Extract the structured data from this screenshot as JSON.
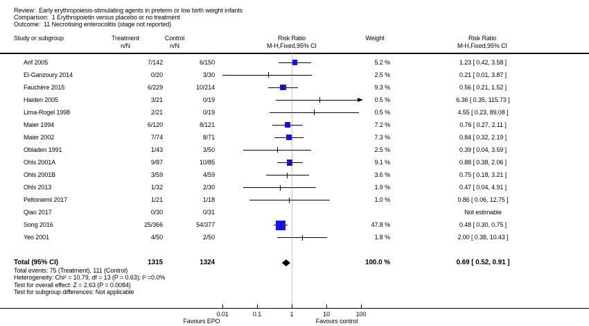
{
  "meta": {
    "review_label": "Review:",
    "review_title": "Early erythropoiesis-stimulating agents in preterm or low birth weight infants",
    "comparison_label": "Comparison:",
    "comparison_title": "1 Erythropoietin versus placebo or no treatment",
    "outcome_label": "Outcome:",
    "outcome_title": "11 Necrotising enterocolitis (stage not reported)"
  },
  "columns": {
    "study": "Study or subgroup",
    "treatment": "Treatment",
    "treatment_sub": "n/N",
    "control": "Control",
    "control_sub": "n/N",
    "rr_plot": "Risk Ratio",
    "rr_plot_sub": "M-H,Fixed,95% CI",
    "weight": "Weight",
    "rr_text": "Risk Ratio",
    "rr_text_sub": "M-H,Fixed,95% CI"
  },
  "chart_data": {
    "type": "forest",
    "effect_measure": "Risk Ratio (M-H, Fixed, 95% CI)",
    "x_axis": {
      "scale": "log",
      "ticks": [
        0.01,
        0.1,
        1,
        10,
        100
      ],
      "tick_labels": [
        "0.01",
        "0.1",
        "1",
        "10",
        "100"
      ],
      "null_line": 1,
      "favours_left": "Favours EPO",
      "favours_right": "Favours control"
    },
    "studies": [
      {
        "name": "Arif 2005",
        "treatment": "7/142",
        "control": "6/150",
        "weight": 5.2,
        "weight_label": "5.2 %",
        "rr": 1.23,
        "ci_low": 0.42,
        "ci_high": 3.58,
        "rr_label": "1.23 [ 0.42, 3.58 ]",
        "estimable": true,
        "arrow_high": false
      },
      {
        "name": "El-Ganzoury 2014",
        "treatment": "0/20",
        "control": "3/30",
        "weight": 2.5,
        "weight_label": "2.5 %",
        "rr": 0.21,
        "ci_low": 0.01,
        "ci_high": 3.87,
        "rr_label": "0.21 [ 0.01, 3.87 ]",
        "estimable": true,
        "arrow_high": false
      },
      {
        "name": "Fauchère 2015",
        "treatment": "6/229",
        "control": "10/214",
        "weight": 9.3,
        "weight_label": "9.3 %",
        "rr": 0.56,
        "ci_low": 0.21,
        "ci_high": 1.52,
        "rr_label": "0.56 [ 0.21, 1.52 ]",
        "estimable": true,
        "arrow_high": false
      },
      {
        "name": "Haiden 2005",
        "treatment": "3/21",
        "control": "0/19",
        "weight": 0.5,
        "weight_label": "0.5 %",
        "rr": 6.36,
        "ci_low": 0.35,
        "ci_high": 115.73,
        "rr_label": "6.36 [ 0.35, 115.73 ]",
        "estimable": true,
        "arrow_high": true
      },
      {
        "name": "Lima-Rogel 1998",
        "treatment": "2/21",
        "control": "0/19",
        "weight": 0.5,
        "weight_label": "0.5 %",
        "rr": 4.55,
        "ci_low": 0.23,
        "ci_high": 89.08,
        "rr_label": "4.55 [ 0.23, 89.08 ]",
        "estimable": true,
        "arrow_high": false
      },
      {
        "name": "Maier 1994",
        "treatment": "6/120",
        "control": "8/121",
        "weight": 7.2,
        "weight_label": "7.2 %",
        "rr": 0.76,
        "ci_low": 0.27,
        "ci_high": 2.11,
        "rr_label": "0.76 [ 0.27, 2.11 ]",
        "estimable": true,
        "arrow_high": false
      },
      {
        "name": "Maier 2002",
        "treatment": "7/74",
        "control": "8/71",
        "weight": 7.3,
        "weight_label": "7.3 %",
        "rr": 0.84,
        "ci_low": 0.32,
        "ci_high": 2.19,
        "rr_label": "0.84 [ 0.32, 2.19 ]",
        "estimable": true,
        "arrow_high": false
      },
      {
        "name": "Obladen 1991",
        "treatment": "1/43",
        "control": "3/50",
        "weight": 2.5,
        "weight_label": "2.5 %",
        "rr": 0.39,
        "ci_low": 0.04,
        "ci_high": 3.59,
        "rr_label": "0.39 [ 0.04, 3.59 ]",
        "estimable": true,
        "arrow_high": false
      },
      {
        "name": "Ohls 2001A",
        "treatment": "9/87",
        "control": "10/85",
        "weight": 9.1,
        "weight_label": "9.1 %",
        "rr": 0.88,
        "ci_low": 0.38,
        "ci_high": 2.06,
        "rr_label": "0.88 [ 0.38, 2.06 ]",
        "estimable": true,
        "arrow_high": false
      },
      {
        "name": "Ohls 2001B",
        "treatment": "3/59",
        "control": "4/59",
        "weight": 3.6,
        "weight_label": "3.6 %",
        "rr": 0.75,
        "ci_low": 0.18,
        "ci_high": 3.21,
        "rr_label": "0.75 [ 0.18, 3.21 ]",
        "estimable": true,
        "arrow_high": false
      },
      {
        "name": "Ohls 2013",
        "treatment": "1/32",
        "control": "2/30",
        "weight": 1.9,
        "weight_label": "1.9 %",
        "rr": 0.47,
        "ci_low": 0.04,
        "ci_high": 4.91,
        "rr_label": "0.47 [ 0.04, 4.91 ]",
        "estimable": true,
        "arrow_high": false
      },
      {
        "name": "Peltoniemi 2017",
        "treatment": "1/21",
        "control": "1/18",
        "weight": 1.0,
        "weight_label": "1.0 %",
        "rr": 0.86,
        "ci_low": 0.06,
        "ci_high": 12.75,
        "rr_label": "0.86 [ 0.06, 12.75 ]",
        "estimable": true,
        "arrow_high": false
      },
      {
        "name": "Qiao 2017",
        "treatment": "0/30",
        "control": "0/31",
        "weight": null,
        "weight_label": "",
        "rr": null,
        "ci_low": null,
        "ci_high": null,
        "rr_label": "Not estimable",
        "estimable": false,
        "arrow_high": false
      },
      {
        "name": "Song 2016",
        "treatment": "25/366",
        "control": "54/377",
        "weight": 47.8,
        "weight_label": "47.8 %",
        "rr": 0.48,
        "ci_low": 0.3,
        "ci_high": 0.75,
        "rr_label": "0.48 [ 0.30, 0.75 ]",
        "estimable": true,
        "arrow_high": false
      },
      {
        "name": "Yeo 2001",
        "treatment": "4/50",
        "control": "2/50",
        "weight": 1.8,
        "weight_label": "1.8 %",
        "rr": 2.0,
        "ci_low": 0.38,
        "ci_high": 10.43,
        "rr_label": "2.00 [ 0.38, 10.43 ]",
        "estimable": true,
        "arrow_high": false
      }
    ],
    "total": {
      "label": "Total (95% CI)",
      "treatment_n": "1315",
      "control_n": "1324",
      "weight_label": "100.0 %",
      "rr": 0.69,
      "ci_low": 0.52,
      "ci_high": 0.91,
      "rr_label": "0.69 [ 0.52, 0.91 ]"
    }
  },
  "footer": {
    "total_events": "Total events: 75 (Treatment), 111 (Control)",
    "heterogeneity": "Heterogeneity: Chi² = 10.79, df = 13 (P = 0.63); I² =0.0%",
    "overall_effect": "Test for overall effect: Z = 2.63 (P = 0.0084)",
    "subgroup_diff": "Test for subgroup differences: Not applicable"
  },
  "colors": {
    "marker_blue": "#1717df",
    "diamond_black": "#000000",
    "null_line_gray": "#c4c4c4"
  }
}
